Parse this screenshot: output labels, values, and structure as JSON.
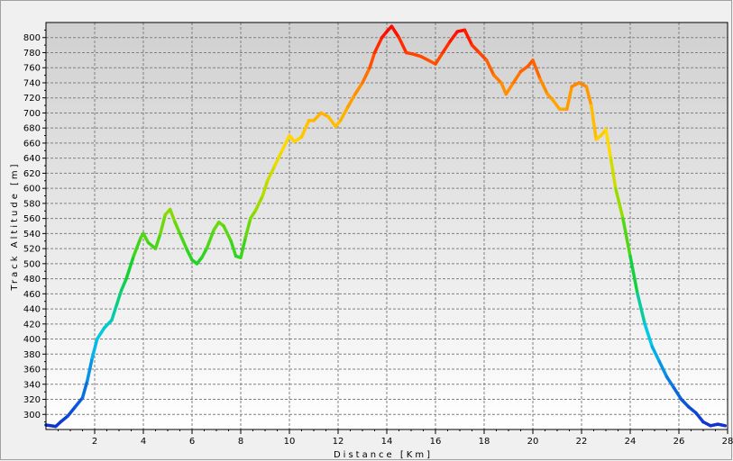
{
  "chart_data": {
    "type": "line",
    "xlabel": "Distance [Km]",
    "ylabel": "Track Altitude [m]",
    "xlim": [
      0,
      28
    ],
    "ylim": [
      280,
      820
    ],
    "x_ticks": [
      2,
      4,
      6,
      8,
      10,
      12,
      14,
      16,
      18,
      20,
      22,
      24,
      26,
      28
    ],
    "y_ticks": [
      300,
      320,
      340,
      360,
      380,
      400,
      420,
      440,
      460,
      480,
      500,
      520,
      540,
      560,
      580,
      600,
      620,
      640,
      660,
      680,
      700,
      720,
      740,
      760,
      780,
      800
    ],
    "grid": true,
    "legend": "none",
    "color_scale": "altitude gradient (blue low → red high)",
    "colors": {
      "plot_background_top": "#d0d0d0",
      "plot_background_bottom": "#ffffff",
      "grid": "#808080",
      "line_low": "#1030d0",
      "line_high": "#ff0000"
    },
    "series": [
      {
        "x": [
          0,
          0.4,
          0.6,
          0.9,
          1.2,
          1.5,
          1.7,
          1.9,
          2.1,
          2.4,
          2.7,
          2.9,
          3.1,
          3.3,
          3.6,
          3.9,
          4.0,
          4.2,
          4.5,
          4.7,
          4.9,
          5.1,
          5.3,
          5.5,
          5.8,
          6.0,
          6.2,
          6.4,
          6.6,
          6.9,
          7.1,
          7.3,
          7.6,
          7.8,
          8.0,
          8.2,
          8.4,
          8.6,
          8.9,
          9.1,
          9.4,
          9.7,
          10.0,
          10.2,
          10.5,
          10.8,
          11.0,
          11.3,
          11.6,
          11.9,
          12.1,
          12.4,
          12.7,
          13.0,
          13.3,
          13.5,
          13.8,
          14.0,
          14.2,
          14.5,
          14.8,
          15.1,
          15.4,
          15.7,
          16.0,
          16.3,
          16.6,
          16.9,
          17.2,
          17.5,
          17.8,
          18.1,
          18.4,
          18.7,
          18.9,
          19.2,
          19.5,
          19.8,
          20.0,
          20.3,
          20.6,
          20.8,
          21.1,
          21.4,
          21.6,
          21.9,
          22.2,
          22.4,
          22.6,
          22.8,
          23.0,
          23.2,
          23.4,
          23.7,
          24.0,
          24.3,
          24.6,
          24.9,
          25.2,
          25.5,
          25.8,
          26.1,
          26.4,
          26.7,
          27.0,
          27.3,
          27.6,
          27.9
        ],
        "y": [
          286,
          284,
          290,
          298,
          310,
          322,
          345,
          375,
          400,
          415,
          425,
          445,
          465,
          480,
          510,
          535,
          540,
          528,
          520,
          540,
          565,
          572,
          555,
          540,
          518,
          505,
          500,
          508,
          520,
          545,
          555,
          550,
          530,
          510,
          508,
          535,
          560,
          570,
          590,
          610,
          630,
          650,
          670,
          662,
          668,
          690,
          690,
          700,
          695,
          682,
          690,
          708,
          725,
          740,
          760,
          780,
          800,
          808,
          815,
          800,
          780,
          778,
          775,
          770,
          765,
          780,
          795,
          808,
          810,
          790,
          780,
          770,
          750,
          740,
          725,
          740,
          755,
          762,
          770,
          745,
          725,
          718,
          705,
          705,
          735,
          740,
          735,
          710,
          665,
          670,
          678,
          640,
          600,
          560,
          510,
          460,
          420,
          390,
          370,
          350,
          335,
          320,
          310,
          302,
          290,
          285,
          287,
          285
        ]
      }
    ]
  }
}
